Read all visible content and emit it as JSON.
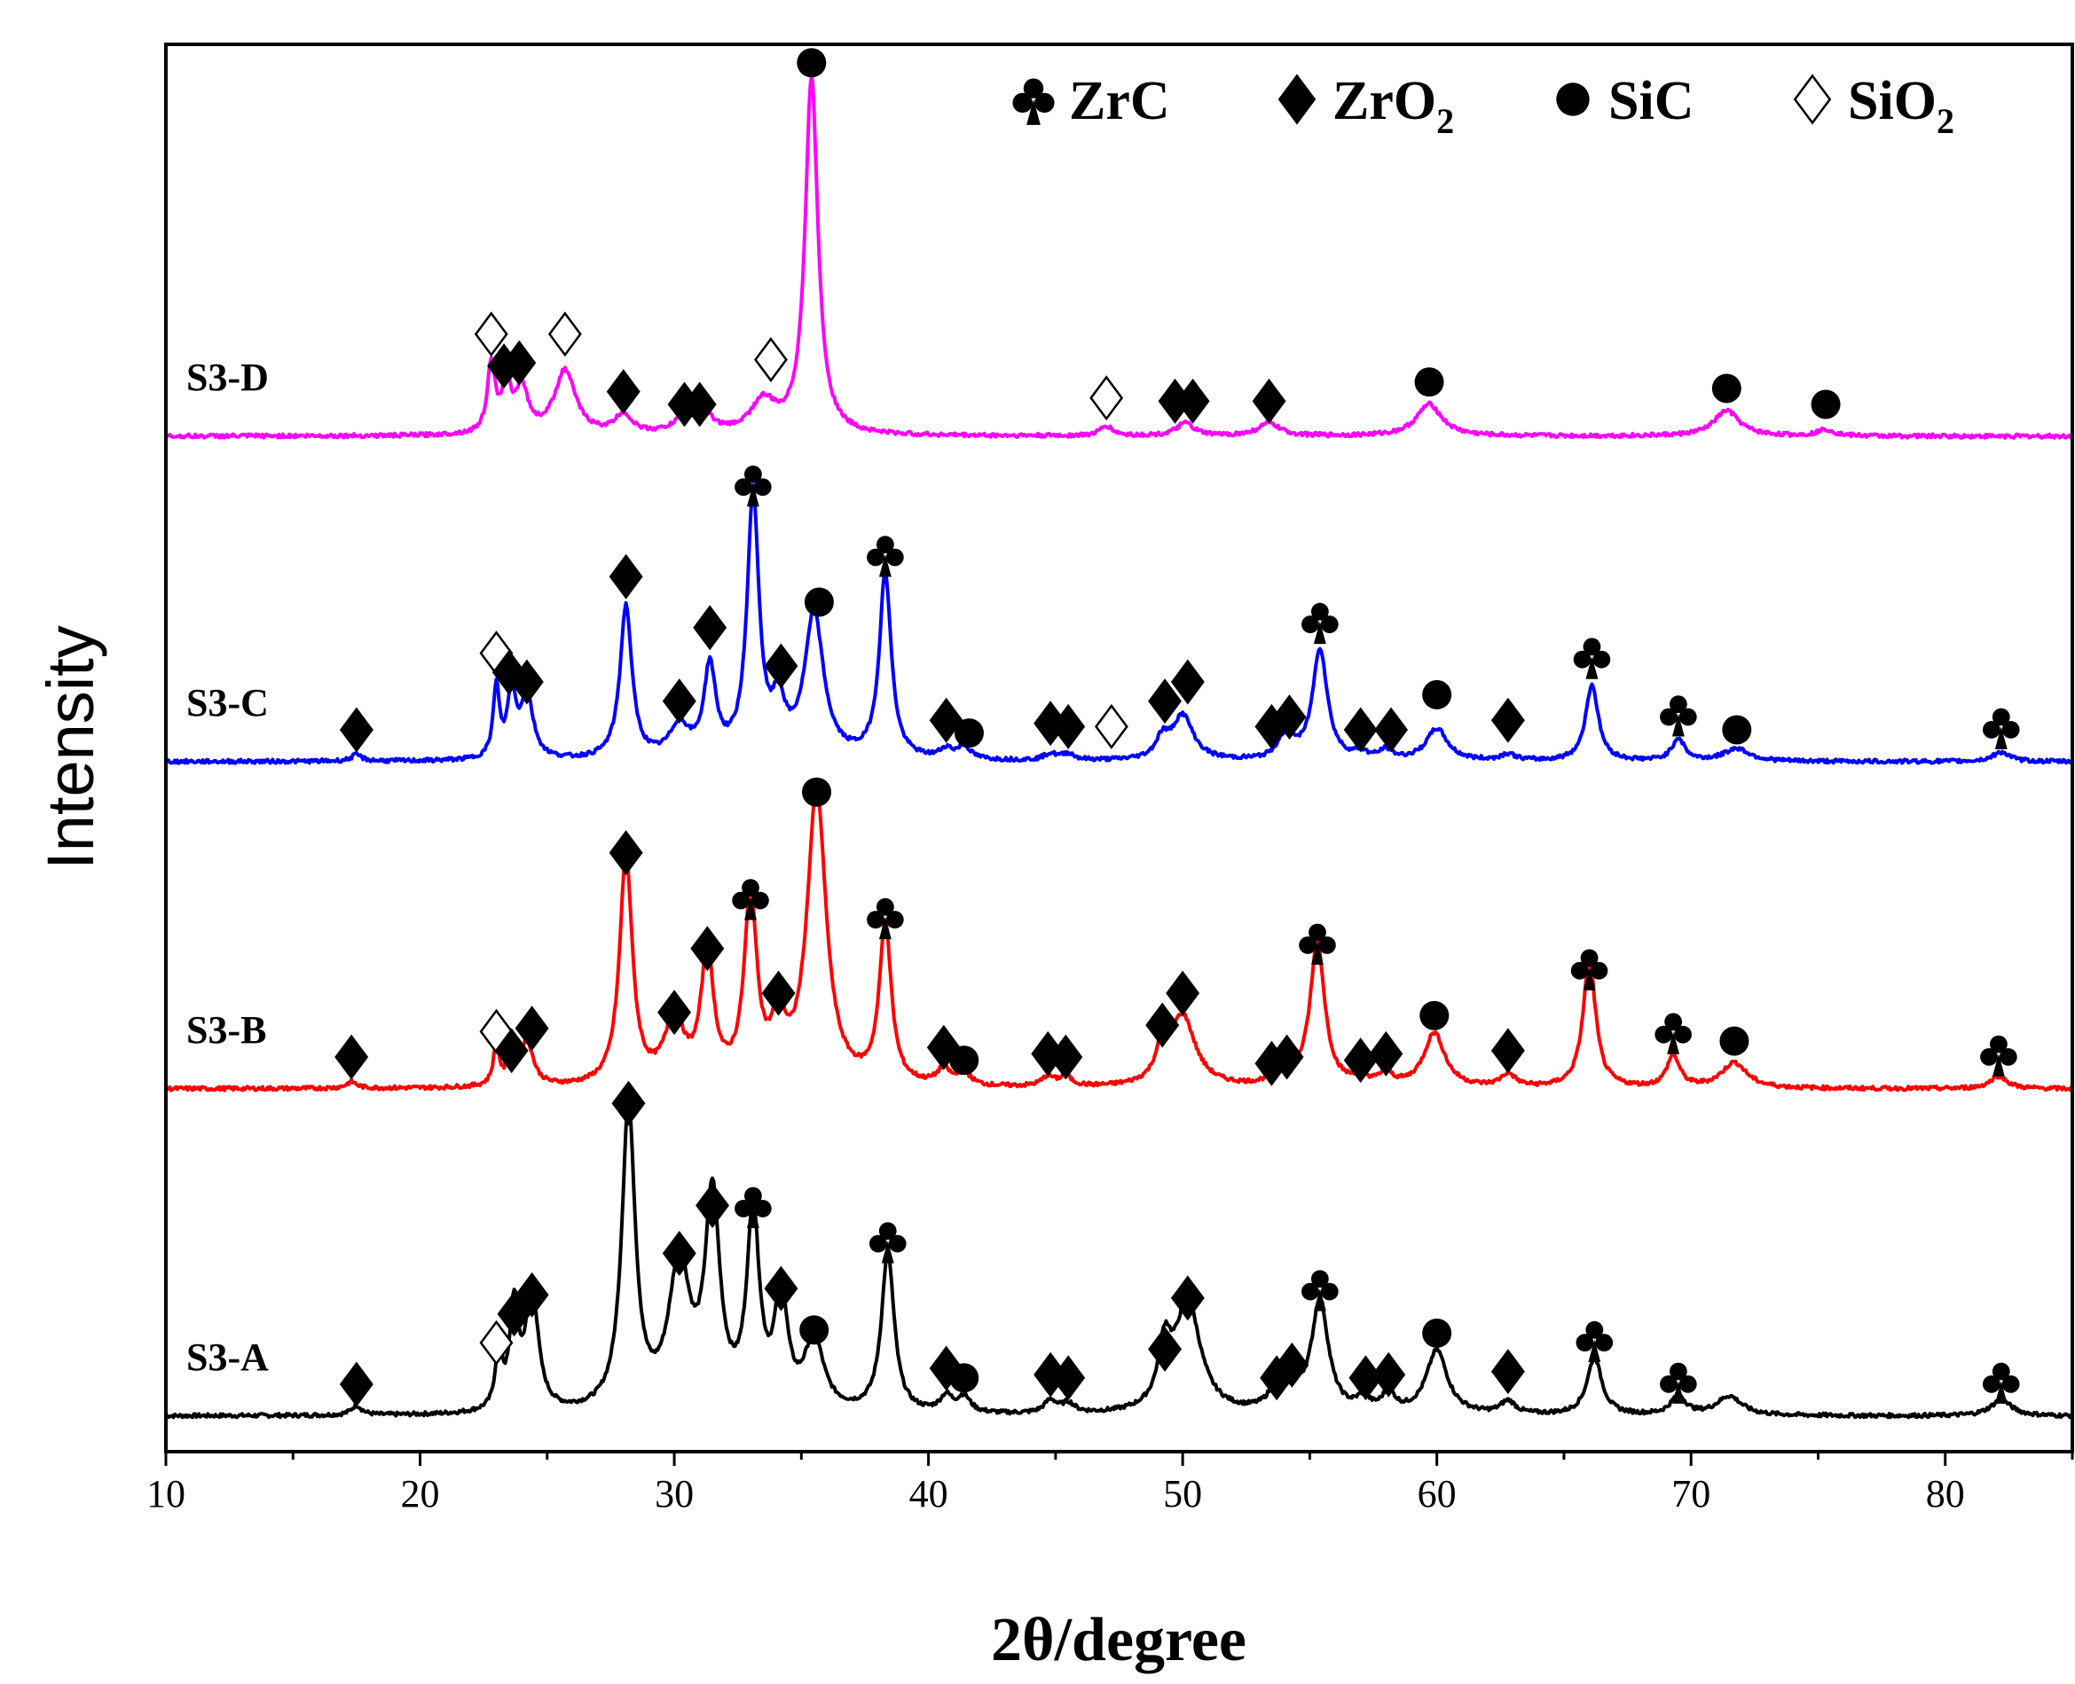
{
  "chart_data": {
    "type": "line",
    "xlabel_main": "2θ/degree",
    "ylabel": "Intensity",
    "xlim": [
      10,
      85
    ],
    "xticks": [
      10,
      20,
      30,
      40,
      50,
      60,
      70,
      80
    ],
    "legend_position": "top-right",
    "legend": [
      {
        "symbol": "club",
        "label": "ZrC"
      },
      {
        "symbol": "diamond-filled",
        "label": "ZrO",
        "subscript": "2"
      },
      {
        "symbol": "circle-filled",
        "label": "SiC"
      },
      {
        "symbol": "diamond-open",
        "label": "SiO",
        "subscript": "2"
      }
    ],
    "series": [
      {
        "name": "S3-A",
        "color": "#000000",
        "peaks": [
          [
            17.5,
            0.03,
            0.25
          ],
          [
            23.1,
            0.2,
            0.15
          ],
          [
            23.7,
            0.32,
            0.2
          ],
          [
            24.4,
            0.38,
            0.3
          ],
          [
            28.2,
            0.95,
            0.32
          ],
          [
            30.2,
            0.45,
            0.5
          ],
          [
            31.5,
            0.65,
            0.35
          ],
          [
            33.1,
            0.6,
            0.3
          ],
          [
            34.2,
            0.35,
            0.3
          ],
          [
            35.5,
            0.22,
            0.45
          ],
          [
            38.4,
            0.5,
            0.3
          ],
          [
            40.7,
            0.05,
            0.3
          ],
          [
            41.4,
            0.05,
            0.3
          ],
          [
            44.8,
            0.04,
            0.3
          ],
          [
            45.5,
            0.03,
            0.3
          ],
          [
            49.3,
            0.18,
            0.3
          ],
          [
            50.2,
            0.35,
            0.6
          ],
          [
            53.8,
            0.08,
            0.35
          ],
          [
            54.2,
            0.1,
            0.35
          ],
          [
            55.4,
            0.35,
            0.4
          ],
          [
            57.1,
            0.04,
            0.3
          ],
          [
            58.1,
            0.06,
            0.3
          ],
          [
            60.0,
            0.2,
            0.5
          ],
          [
            62.8,
            0.04,
            0.35
          ],
          [
            66.2,
            0.18,
            0.35
          ],
          [
            69.5,
            0.06,
            0.35
          ],
          [
            71.5,
            0.06,
            0.6
          ],
          [
            82.2,
            0.05,
            0.5
          ]
        ],
        "markers": [
          {
            "type": "diamond-filled",
            "x": 17.5,
            "h": 0.1
          },
          {
            "type": "diamond-open",
            "x": 23.0,
            "h": 0.23
          },
          {
            "type": "diamond-filled",
            "x": 23.7,
            "h": 0.32
          },
          {
            "type": "diamond-filled",
            "x": 24.4,
            "h": 0.38
          },
          {
            "type": "diamond-filled",
            "x": 28.2,
            "h": 0.98
          },
          {
            "type": "diamond-filled",
            "x": 30.2,
            "h": 0.51
          },
          {
            "type": "diamond-filled",
            "x": 31.5,
            "h": 0.66
          },
          {
            "type": "club",
            "x": 33.1,
            "h": 0.66
          },
          {
            "type": "diamond-filled",
            "x": 34.2,
            "h": 0.4
          },
          {
            "type": "circle-filled",
            "x": 35.5,
            "h": 0.27
          },
          {
            "type": "club",
            "x": 38.4,
            "h": 0.55
          },
          {
            "type": "diamond-filled",
            "x": 40.7,
            "h": 0.15
          },
          {
            "type": "circle-filled",
            "x": 41.4,
            "h": 0.12
          },
          {
            "type": "diamond-filled",
            "x": 44.8,
            "h": 0.13
          },
          {
            "type": "diamond-filled",
            "x": 45.5,
            "h": 0.12
          },
          {
            "type": "diamond-filled",
            "x": 49.3,
            "h": 0.21
          },
          {
            "type": "diamond-filled",
            "x": 50.2,
            "h": 0.37
          },
          {
            "type": "diamond-filled",
            "x": 53.7,
            "h": 0.12
          },
          {
            "type": "diamond-filled",
            "x": 54.3,
            "h": 0.16
          },
          {
            "type": "club",
            "x": 55.4,
            "h": 0.4
          },
          {
            "type": "diamond-filled",
            "x": 57.2,
            "h": 0.12
          },
          {
            "type": "diamond-filled",
            "x": 58.1,
            "h": 0.13
          },
          {
            "type": "circle-filled",
            "x": 60.0,
            "h": 0.26
          },
          {
            "type": "diamond-filled",
            "x": 62.8,
            "h": 0.14
          },
          {
            "type": "club",
            "x": 66.2,
            "h": 0.24
          },
          {
            "type": "club",
            "x": 69.5,
            "h": 0.11
          },
          {
            "type": "club",
            "x": 82.2,
            "h": 0.11
          }
        ]
      },
      {
        "name": "S3-B",
        "color": "#ff0000",
        "peaks": [
          [
            17.3,
            0.02,
            0.25
          ],
          [
            23.0,
            0.12,
            0.15
          ],
          [
            23.6,
            0.08,
            0.2
          ],
          [
            24.2,
            0.14,
            0.3
          ],
          [
            28.1,
            0.72,
            0.3
          ],
          [
            30.0,
            0.2,
            0.45
          ],
          [
            31.3,
            0.4,
            0.3
          ],
          [
            33.0,
            0.58,
            0.3
          ],
          [
            34.1,
            0.18,
            0.3
          ],
          [
            35.6,
            0.92,
            0.45
          ],
          [
            38.3,
            0.5,
            0.28
          ],
          [
            40.6,
            0.05,
            0.3
          ],
          [
            41.4,
            0.04,
            0.3
          ],
          [
            44.7,
            0.03,
            0.3
          ],
          [
            45.4,
            0.03,
            0.3
          ],
          [
            49.2,
            0.1,
            0.3
          ],
          [
            50.0,
            0.22,
            0.6
          ],
          [
            53.8,
            0.04,
            0.3
          ],
          [
            54.1,
            0.05,
            0.3
          ],
          [
            55.3,
            0.45,
            0.35
          ],
          [
            57.0,
            0.03,
            0.3
          ],
          [
            58.0,
            0.04,
            0.3
          ],
          [
            59.9,
            0.17,
            0.5
          ],
          [
            62.8,
            0.04,
            0.35
          ],
          [
            66.0,
            0.4,
            0.3
          ],
          [
            69.3,
            0.1,
            0.3
          ],
          [
            71.7,
            0.08,
            0.6
          ],
          [
            82.1,
            0.04,
            0.4
          ]
        ],
        "markers": [
          {
            "type": "diamond-filled",
            "x": 17.3,
            "h": 0.1
          },
          {
            "type": "diamond-open",
            "x": 23.0,
            "h": 0.18
          },
          {
            "type": "diamond-filled",
            "x": 23.6,
            "h": 0.12
          },
          {
            "type": "diamond-filled",
            "x": 24.4,
            "h": 0.19
          },
          {
            "type": "diamond-filled",
            "x": 28.1,
            "h": 0.74
          },
          {
            "type": "diamond-filled",
            "x": 30.0,
            "h": 0.24
          },
          {
            "type": "diamond-filled",
            "x": 31.3,
            "h": 0.44
          },
          {
            "type": "club",
            "x": 33.0,
            "h": 0.6
          },
          {
            "type": "diamond-filled",
            "x": 34.1,
            "h": 0.3
          },
          {
            "type": "circle-filled",
            "x": 35.6,
            "h": 0.93
          },
          {
            "type": "club",
            "x": 38.3,
            "h": 0.54
          },
          {
            "type": "diamond-filled",
            "x": 40.6,
            "h": 0.13
          },
          {
            "type": "circle-filled",
            "x": 41.4,
            "h": 0.09
          },
          {
            "type": "diamond-filled",
            "x": 44.7,
            "h": 0.11
          },
          {
            "type": "diamond-filled",
            "x": 45.4,
            "h": 0.1
          },
          {
            "type": "diamond-filled",
            "x": 49.2,
            "h": 0.2
          },
          {
            "type": "diamond-filled",
            "x": 50.0,
            "h": 0.3
          },
          {
            "type": "diamond-filled",
            "x": 53.5,
            "h": 0.08
          },
          {
            "type": "diamond-filled",
            "x": 54.1,
            "h": 0.1
          },
          {
            "type": "club",
            "x": 55.3,
            "h": 0.46
          },
          {
            "type": "diamond-filled",
            "x": 57.0,
            "h": 0.09
          },
          {
            "type": "diamond-filled",
            "x": 58.0,
            "h": 0.11
          },
          {
            "type": "circle-filled",
            "x": 59.9,
            "h": 0.23
          },
          {
            "type": "diamond-filled",
            "x": 62.8,
            "h": 0.12
          },
          {
            "type": "club",
            "x": 66.0,
            "h": 0.38
          },
          {
            "type": "club",
            "x": 69.3,
            "h": 0.18
          },
          {
            "type": "circle-filled",
            "x": 71.7,
            "h": 0.15
          },
          {
            "type": "club",
            "x": 82.1,
            "h": 0.11
          }
        ]
      },
      {
        "name": "S3-C",
        "color": "#0000ff",
        "peaks": [
          [
            17.5,
            0.02,
            0.25
          ],
          [
            23.0,
            0.22,
            0.15
          ],
          [
            23.6,
            0.2,
            0.2
          ],
          [
            24.2,
            0.2,
            0.3
          ],
          [
            28.1,
            0.48,
            0.28
          ],
          [
            30.2,
            0.1,
            0.45
          ],
          [
            31.4,
            0.28,
            0.28
          ],
          [
            33.1,
            0.82,
            0.28
          ],
          [
            34.1,
            0.15,
            0.3
          ],
          [
            35.5,
            0.45,
            0.45
          ],
          [
            38.3,
            0.58,
            0.28
          ],
          [
            40.7,
            0.03,
            0.3
          ],
          [
            41.4,
            0.04,
            0.3
          ],
          [
            44.8,
            0.02,
            0.3
          ],
          [
            45.5,
            0.02,
            0.3
          ],
          [
            49.2,
            0.06,
            0.3
          ],
          [
            50.0,
            0.14,
            0.5
          ],
          [
            53.9,
            0.04,
            0.3
          ],
          [
            54.2,
            0.05,
            0.3
          ],
          [
            55.4,
            0.35,
            0.35
          ],
          [
            57.0,
            0.02,
            0.3
          ],
          [
            58.0,
            0.03,
            0.3
          ],
          [
            60.0,
            0.1,
            0.5
          ],
          [
            62.8,
            0.02,
            0.35
          ],
          [
            66.1,
            0.24,
            0.3
          ],
          [
            69.5,
            0.07,
            0.3
          ],
          [
            71.8,
            0.04,
            0.6
          ],
          [
            82.2,
            0.03,
            0.4
          ]
        ],
        "markers": [
          {
            "type": "diamond-filled",
            "x": 17.5,
            "h": 0.1
          },
          {
            "type": "diamond-open",
            "x": 23.0,
            "h": 0.34
          },
          {
            "type": "diamond-filled",
            "x": 23.5,
            "h": 0.28
          },
          {
            "type": "diamond-filled",
            "x": 24.2,
            "h": 0.25
          },
          {
            "type": "diamond-filled",
            "x": 28.1,
            "h": 0.58
          },
          {
            "type": "diamond-filled",
            "x": 30.2,
            "h": 0.19
          },
          {
            "type": "diamond-filled",
            "x": 31.4,
            "h": 0.42
          },
          {
            "type": "club",
            "x": 33.1,
            "h": 0.87
          },
          {
            "type": "diamond-filled",
            "x": 34.2,
            "h": 0.3
          },
          {
            "type": "circle-filled",
            "x": 35.7,
            "h": 0.5
          },
          {
            "type": "club",
            "x": 38.3,
            "h": 0.65
          },
          {
            "type": "diamond-filled",
            "x": 40.7,
            "h": 0.13
          },
          {
            "type": "circle-filled",
            "x": 41.6,
            "h": 0.09
          },
          {
            "type": "diamond-filled",
            "x": 44.8,
            "h": 0.12
          },
          {
            "type": "diamond-filled",
            "x": 45.5,
            "h": 0.11
          },
          {
            "type": "diamond-open",
            "x": 47.2,
            "h": 0.11
          },
          {
            "type": "diamond-filled",
            "x": 49.3,
            "h": 0.19
          },
          {
            "type": "diamond-filled",
            "x": 50.2,
            "h": 0.25
          },
          {
            "type": "diamond-filled",
            "x": 53.5,
            "h": 0.11
          },
          {
            "type": "diamond-filled",
            "x": 54.2,
            "h": 0.14
          },
          {
            "type": "club",
            "x": 55.4,
            "h": 0.44
          },
          {
            "type": "diamond-filled",
            "x": 57.0,
            "h": 0.1
          },
          {
            "type": "diamond-filled",
            "x": 58.2,
            "h": 0.1
          },
          {
            "type": "circle-filled",
            "x": 60.0,
            "h": 0.21
          },
          {
            "type": "diamond-filled",
            "x": 62.8,
            "h": 0.13
          },
          {
            "type": "club",
            "x": 66.1,
            "h": 0.33
          },
          {
            "type": "club",
            "x": 69.5,
            "h": 0.15
          },
          {
            "type": "circle-filled",
            "x": 71.8,
            "h": 0.1
          },
          {
            "type": "club",
            "x": 82.2,
            "h": 0.11
          }
        ]
      },
      {
        "name": "S3-D",
        "color": "#ff00ff",
        "peaks": [
          [
            22.8,
            0.22,
            0.18
          ],
          [
            23.4,
            0.15,
            0.2
          ],
          [
            24.0,
            0.14,
            0.3
          ],
          [
            25.7,
            0.2,
            0.5
          ],
          [
            28.0,
            0.06,
            0.4
          ],
          [
            30.5,
            0.06,
            0.5
          ],
          [
            31.2,
            0.05,
            0.4
          ],
          [
            33.5,
            0.1,
            0.6
          ],
          [
            35.4,
            1.12,
            0.3
          ],
          [
            47.0,
            0.03,
            0.3
          ],
          [
            50.1,
            0.04,
            0.4
          ],
          [
            53.4,
            0.04,
            0.5
          ],
          [
            59.7,
            0.1,
            0.6
          ],
          [
            71.4,
            0.08,
            0.6
          ],
          [
            75.3,
            0.02,
            0.4
          ]
        ],
        "markers": [
          {
            "type": "diamond-open",
            "x": 22.8,
            "h": 0.32
          },
          {
            "type": "diamond-filled",
            "x": 23.3,
            "h": 0.22
          },
          {
            "type": "diamond-filled",
            "x": 23.9,
            "h": 0.23
          },
          {
            "type": "diamond-open",
            "x": 25.7,
            "h": 0.32
          },
          {
            "type": "diamond-filled",
            "x": 28.0,
            "h": 0.14
          },
          {
            "type": "diamond-filled",
            "x": 30.4,
            "h": 0.1
          },
          {
            "type": "diamond-filled",
            "x": 31.0,
            "h": 0.1
          },
          {
            "type": "diamond-open",
            "x": 33.8,
            "h": 0.24
          },
          {
            "type": "circle-filled",
            "x": 35.4,
            "h": 1.17
          },
          {
            "type": "diamond-open",
            "x": 47.0,
            "h": 0.12
          },
          {
            "type": "diamond-filled",
            "x": 49.7,
            "h": 0.11
          },
          {
            "type": "diamond-filled",
            "x": 50.4,
            "h": 0.11
          },
          {
            "type": "diamond-filled",
            "x": 53.4,
            "h": 0.11
          },
          {
            "type": "circle-filled",
            "x": 59.7,
            "h": 0.17
          },
          {
            "type": "circle-filled",
            "x": 71.4,
            "h": 0.15
          },
          {
            "type": "circle-filled",
            "x": 75.3,
            "h": 0.1
          }
        ]
      }
    ]
  }
}
